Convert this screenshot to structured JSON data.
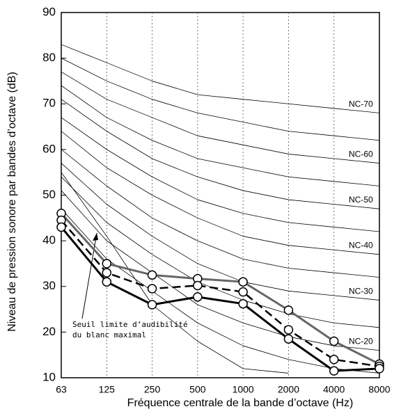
{
  "chart_data": {
    "type": "line",
    "x_label": "Fréquence centrale de la bande d’octave (Hz)",
    "y_label": "Niveau de pression sonore par bandes d’octave (dB)",
    "categories": [
      "63",
      "125",
      "250",
      "500",
      "1000",
      "2000",
      "4000",
      "8000"
    ],
    "ylim": [
      10,
      90
    ],
    "yticks": [
      10,
      20,
      30,
      40,
      50,
      60,
      70,
      80,
      90
    ],
    "grid": "x",
    "annotations": [
      "Seuil limite d’audibilité",
      "du blanc maximal"
    ],
    "series": [
      {
        "color": "#000000",
        "width": 0.8,
        "values": [
          55,
          41,
          26,
          18,
          12,
          11,
          null,
          null
        ]
      },
      {
        "color": "#000000",
        "width": 0.8,
        "values": [
          47,
          36,
          29,
          22,
          17,
          14,
          12,
          11
        ]
      },
      {
        "name": "NC-20",
        "color": "#000000",
        "width": 0.8,
        "values": [
          51,
          40,
          33,
          26,
          22,
          19,
          17,
          16
        ]
      },
      {
        "color": "#000000",
        "width": 0.8,
        "values": [
          54,
          44,
          37,
          31,
          27,
          24,
          22,
          21
        ]
      },
      {
        "name": "NC-30",
        "color": "#000000",
        "width": 0.8,
        "values": [
          57,
          48,
          41,
          35,
          31,
          29,
          28,
          27
        ]
      },
      {
        "color": "#000000",
        "width": 0.8,
        "values": [
          60,
          52,
          45,
          40,
          36,
          34,
          33,
          32
        ]
      },
      {
        "name": "NC-40",
        "color": "#000000",
        "width": 0.8,
        "values": [
          64,
          56,
          50,
          45,
          41,
          39,
          38,
          37
        ]
      },
      {
        "color": "#000000",
        "width": 0.8,
        "values": [
          67,
          60,
          54,
          49,
          46,
          44,
          43,
          42
        ]
      },
      {
        "name": "NC-50",
        "color": "#000000",
        "width": 0.8,
        "values": [
          71,
          64,
          58,
          54,
          51,
          49,
          48,
          47
        ]
      },
      {
        "color": "#000000",
        "width": 0.8,
        "values": [
          74,
          67,
          62,
          58,
          56,
          54,
          53,
          52
        ]
      },
      {
        "name": "NC-60",
        "color": "#000000",
        "width": 0.8,
        "values": [
          77,
          71,
          67,
          63,
          61,
          59,
          58,
          57
        ]
      },
      {
        "color": "#000000",
        "width": 0.8,
        "values": [
          80,
          75,
          71,
          68,
          66,
          64,
          63,
          62
        ]
      },
      {
        "name": "NC-70",
        "color": "#000000",
        "width": 0.8,
        "values": [
          83,
          79,
          75,
          72,
          71,
          70,
          69,
          68
        ]
      },
      {
        "color": "#666666",
        "width": 3,
        "marker": "circle",
        "values": [
          46,
          35,
          32.5,
          31.7,
          31,
          24.8,
          18,
          13
        ]
      },
      {
        "color": "#000000",
        "width": 2.5,
        "dash": "12 6",
        "marker": "circle",
        "values": [
          44.5,
          33,
          29.5,
          30.2,
          28.8,
          20.5,
          14,
          12.5
        ]
      },
      {
        "color": "#000000",
        "width": 3,
        "marker": "circle",
        "values": [
          43,
          31,
          26,
          27.7,
          26.2,
          18.5,
          11.5,
          12
        ]
      }
    ]
  }
}
